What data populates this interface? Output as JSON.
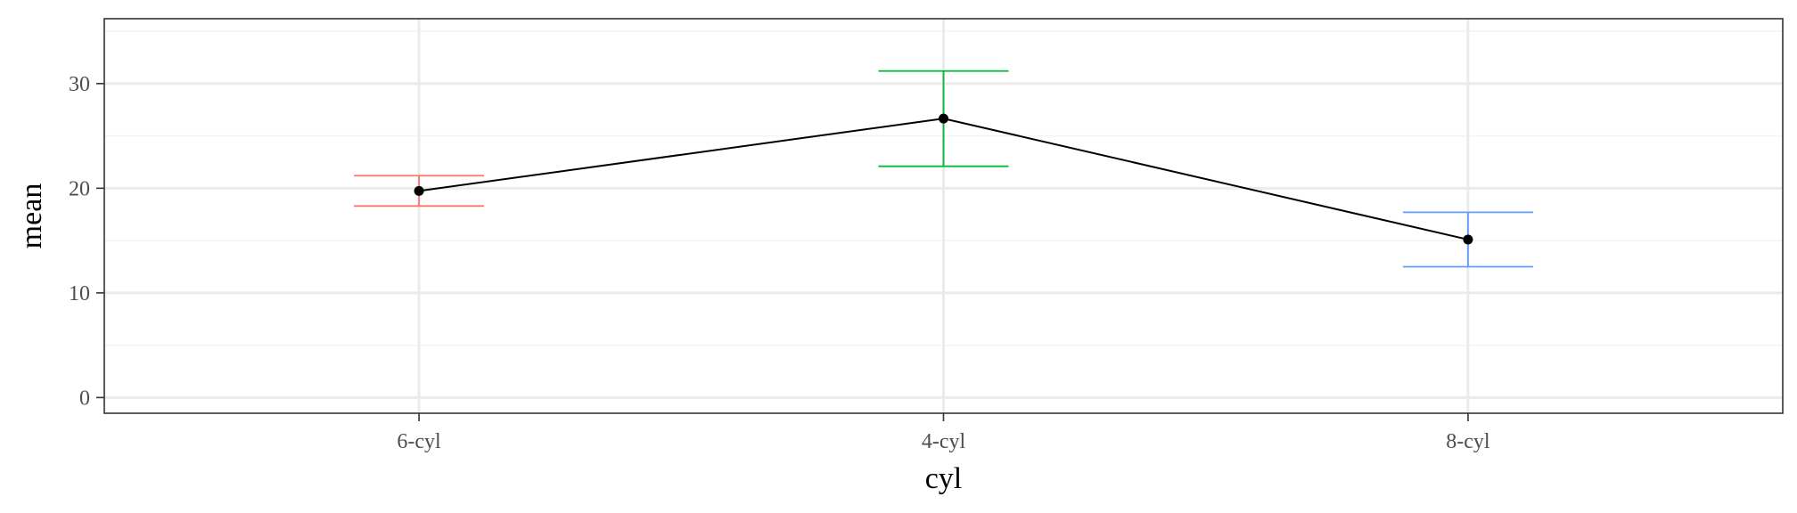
{
  "chart_data": {
    "type": "line",
    "categories": [
      "6-cyl",
      "4-cyl",
      "8-cyl"
    ],
    "series": [
      {
        "values": [
          19.74,
          26.66,
          15.1
        ],
        "error_low": [
          18.3,
          22.1,
          12.5
        ],
        "error_high": [
          21.2,
          31.2,
          17.7
        ],
        "error_colors": [
          "#F8766D",
          "#00BA38",
          "#619CFF"
        ]
      }
    ],
    "xlabel": "cyl",
    "ylabel": "mean",
    "ylim": [
      -1.5,
      36.2
    ],
    "yticks": [
      0,
      10,
      20,
      30
    ],
    "grid": true,
    "theme": "bw",
    "colors": {
      "line": "#000000",
      "point": "#000000",
      "grid_major": "#ebebeb",
      "grid_minor": "#f4f4f4",
      "panel_border": "#333333"
    }
  }
}
